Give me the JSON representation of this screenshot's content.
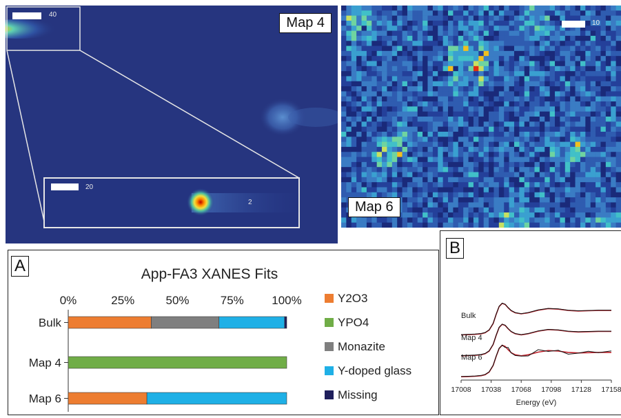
{
  "map4": {
    "label": "Map 4",
    "scale_main": "40",
    "scale_inset": "20",
    "inset_value": "2"
  },
  "map6": {
    "label": "Map 6",
    "scale": "10"
  },
  "panel_a": {
    "letter": "A"
  },
  "panel_b": {
    "letter": "B"
  },
  "chart_data": [
    {
      "type": "bar",
      "orientation": "horizontal",
      "stacked": true,
      "title": "App-FA3 XANES Fits",
      "categories": [
        "Bulk",
        "Map 4",
        "Map 6"
      ],
      "x_ticks": [
        "0%",
        "25%",
        "50%",
        "75%",
        "100%"
      ],
      "xlim": [
        0,
        100
      ],
      "legend_position": "right",
      "series": [
        {
          "name": "Y2O3",
          "color": "#ed7d31",
          "values": [
            38,
            0,
            36
          ]
        },
        {
          "name": "YPO4",
          "color": "#70ad47",
          "values": [
            0,
            100,
            0
          ]
        },
        {
          "name": "Monazite",
          "color": "#7f7f7f",
          "values": [
            31,
            0,
            0
          ]
        },
        {
          "name": "Y-doped glass",
          "color": "#1fb0e6",
          "values": [
            30,
            0,
            64
          ]
        },
        {
          "name": "Missing",
          "color": "#1f1f5c",
          "values": [
            1,
            0,
            0
          ]
        }
      ]
    },
    {
      "type": "line",
      "xlabel": "Energy (eV)",
      "ylabel": "",
      "x_ticks": [
        17008,
        17038,
        17068,
        17098,
        17128,
        17158
      ],
      "xlim": [
        17008,
        17158
      ],
      "grid": false,
      "series_labels": [
        "Bulk",
        "Map 4",
        "Map 6"
      ],
      "offsets": [
        1.6,
        0.8,
        0.0
      ],
      "series": [
        {
          "curve": "data",
          "color": "#111111",
          "x": [
            17008,
            17015,
            17022,
            17028,
            17032,
            17036,
            17040,
            17043,
            17046,
            17049,
            17052,
            17055,
            17058,
            17062,
            17068,
            17075,
            17085,
            17095,
            17105,
            17115,
            17125,
            17135,
            17145,
            17158
          ],
          "values": [
            0.02,
            0.03,
            0.04,
            0.06,
            0.1,
            0.2,
            0.45,
            0.8,
            1.1,
            1.22,
            1.18,
            1.05,
            0.94,
            0.86,
            0.82,
            0.86,
            0.96,
            1.02,
            1.0,
            0.95,
            0.93,
            0.94,
            0.95,
            0.95
          ]
        }
      ]
    }
  ]
}
